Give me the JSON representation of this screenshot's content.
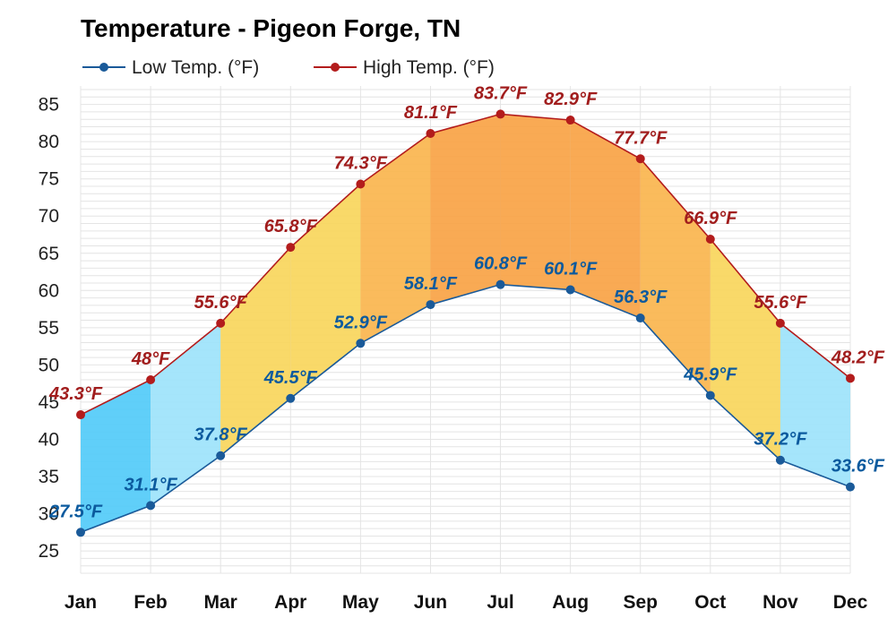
{
  "chart_data": {
    "type": "line",
    "title": "Temperature - Pigeon Forge, TN",
    "categories": [
      "Jan",
      "Feb",
      "Mar",
      "Apr",
      "May",
      "Jun",
      "Jul",
      "Aug",
      "Sep",
      "Oct",
      "Nov",
      "Dec"
    ],
    "series": [
      {
        "name": "Low Temp. (°F)",
        "values": [
          27.5,
          31.1,
          37.8,
          45.5,
          52.9,
          58.1,
          60.8,
          60.1,
          56.3,
          45.9,
          37.2,
          33.6
        ],
        "labels": [
          "27.5°F",
          "31.1°F",
          "37.8°F",
          "45.5°F",
          "52.9°F",
          "58.1°F",
          "60.8°F",
          "60.1°F",
          "56.3°F",
          "45.9°F",
          "37.2°F",
          "33.6°F"
        ],
        "color": "#1a5a99"
      },
      {
        "name": "High Temp. (°F)",
        "values": [
          43.3,
          48,
          55.6,
          65.8,
          74.3,
          81.1,
          83.7,
          82.9,
          77.7,
          66.9,
          55.6,
          48.2
        ],
        "labels": [
          "43.3°F",
          "48°F",
          "55.6°F",
          "65.8°F",
          "74.3°F",
          "81.1°F",
          "83.7°F",
          "82.9°F",
          "77.7°F",
          "66.9°F",
          "55.6°F",
          "48.2°F"
        ],
        "color": "#b31c1c"
      }
    ],
    "yticks": [
      25,
      30,
      35,
      40,
      45,
      50,
      55,
      60,
      65,
      70,
      75,
      80,
      85
    ],
    "ylim": [
      22,
      87
    ],
    "grid": true,
    "legend_placement": "top-left",
    "band_colors": [
      "#52cbf8",
      "#9de3fb",
      "#f8d65c",
      "#fab54e",
      "#f9a345"
    ]
  }
}
